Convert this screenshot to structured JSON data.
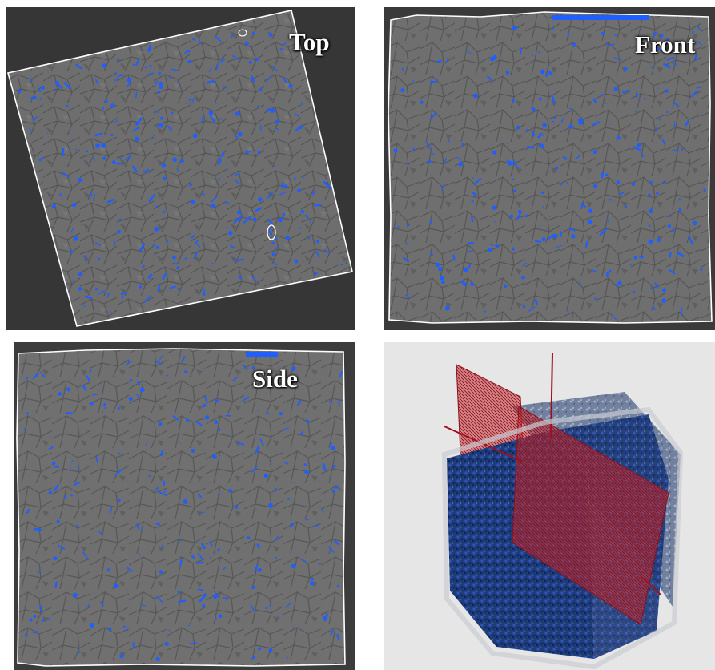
{
  "panels": {
    "top": {
      "label": "Top"
    },
    "front": {
      "label": "Front"
    },
    "side": {
      "label": "Side"
    },
    "volume": {
      "label": ""
    }
  },
  "colors": {
    "pore_blue": "#1f5fff",
    "outline_white": "#ffffff",
    "slice_plane_red": "#b0202a",
    "background_light": "#e6e6e6"
  }
}
